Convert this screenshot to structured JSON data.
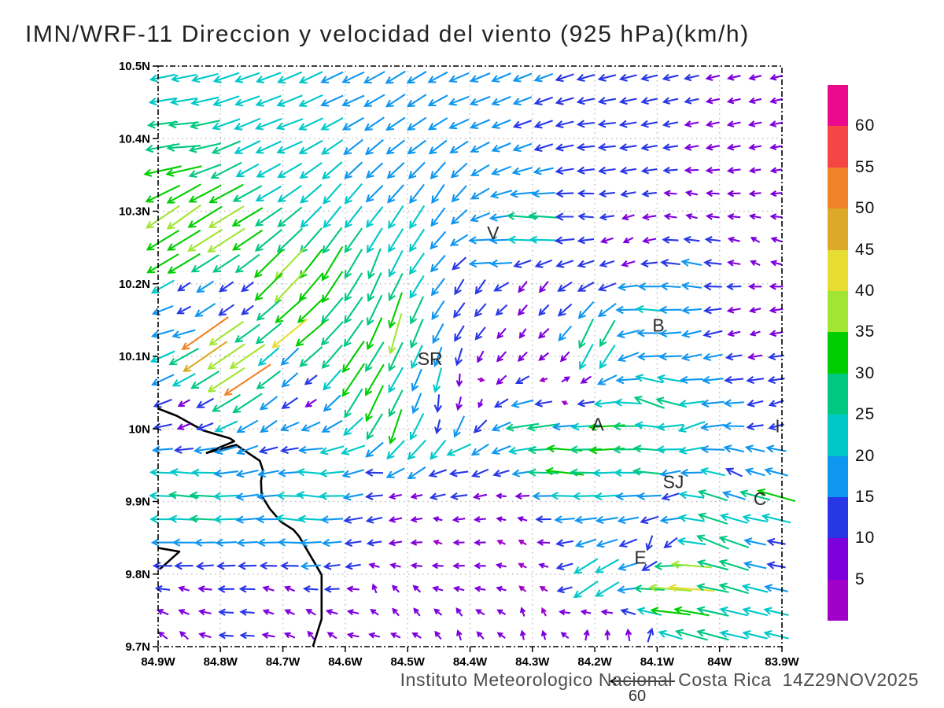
{
  "title": "IMN/WRF-11 Direccion y velocidad del viento (925 hPa)(km/h)",
  "footer": {
    "text": "Instituto Meteorologico Nacional Costa Rica  14Z29NOV2025"
  },
  "chart_data": {
    "type": "vector_field",
    "model": "IMN/WRF-11",
    "variable": "Direccion y velocidad del viento",
    "pressure_level": "925 hPa",
    "units": "km/h",
    "valid_time": "14Z29NOV2025",
    "source": "Instituto Meteorologico Nacional Costa Rica",
    "axes": {
      "lat_range": [
        9.7,
        10.5
      ],
      "lonW_range": [
        84.9,
        83.9
      ],
      "lat_ticks": [
        "10.5N",
        "10.4N",
        "10.3N",
        "10.2N",
        "10.1N",
        "10N",
        "9.9N",
        "9.8N",
        "9.7N"
      ],
      "lon_ticks": [
        "84.9W",
        "84.8W",
        "84.7W",
        "84.6W",
        "84.5W",
        "84.4W",
        "84.3W",
        "84.2W",
        "84.1W",
        "84W",
        "83.9W"
      ],
      "gridlines": "dotted"
    },
    "grid": {
      "cols": 30,
      "rows": 25
    },
    "colorbar": {
      "levels": [
        5,
        10,
        15,
        20,
        25,
        30,
        35,
        40,
        45,
        50,
        55,
        60
      ],
      "colors_low_to_high": [
        "#A000C8",
        "#7D00DC",
        "#2837E6",
        "#0F96F0",
        "#00C8C8",
        "#00C880",
        "#00CD00",
        "#A0E632",
        "#E6DC32",
        "#DCAA28",
        "#F08228",
        "#F54545",
        "#EB0A8C"
      ]
    },
    "reference_vector": {
      "value": 60,
      "label": "60"
    },
    "stations": [
      {
        "label": "V",
        "lonW": 84.363,
        "lat": 10.27
      },
      {
        "label": "SR",
        "lonW": 84.464,
        "lat": 10.097
      },
      {
        "label": "B",
        "lonW": 84.098,
        "lat": 10.143
      },
      {
        "label": "A",
        "lonW": 84.195,
        "lat": 10.006
      },
      {
        "label": "SJ",
        "lonW": 84.074,
        "lat": 9.927
      },
      {
        "label": "C",
        "lonW": 83.935,
        "lat": 9.904
      },
      {
        "label": "E",
        "lonW": 84.127,
        "lat": 9.823
      },
      {
        "label": "I",
        "lonW": 83.907,
        "lat": 10.004
      }
    ],
    "coastline": {
      "segments": [
        [
          [
            84.9,
            10.028
          ],
          [
            84.87,
            10.018
          ],
          [
            84.828,
            9.998
          ],
          [
            84.785,
            9.987
          ],
          [
            84.778,
            9.983
          ],
          [
            84.822,
            9.967
          ],
          [
            84.775,
            9.978
          ],
          [
            84.737,
            9.956
          ],
          [
            84.732,
            9.943
          ],
          [
            84.735,
            9.928
          ],
          [
            84.734,
            9.908
          ],
          [
            84.721,
            9.89
          ],
          [
            84.703,
            9.872
          ],
          [
            84.683,
            9.861
          ],
          [
            84.674,
            9.852
          ],
          [
            84.638,
            9.799
          ],
          [
            84.638,
            9.738
          ],
          [
            84.652,
            9.7
          ]
        ],
        [
          [
            84.9,
            9.836
          ],
          [
            84.866,
            9.831
          ],
          [
            84.897,
            9.807
          ]
        ]
      ]
    },
    "wind_samples": {
      "format": [
        "lonW",
        "lat",
        "u_kmh_eastward",
        "v_kmh_northward"
      ],
      "points": [
        [
          84.87,
          10.47,
          -20,
          -4
        ],
        [
          84.75,
          10.47,
          -20,
          -7
        ],
        [
          84.6,
          10.46,
          -18,
          -8
        ],
        [
          84.4,
          10.45,
          -16,
          -6
        ],
        [
          84.87,
          10.43,
          -25,
          -2
        ],
        [
          84.7,
          10.42,
          -22,
          -8
        ],
        [
          84.5,
          10.42,
          -15,
          -10
        ],
        [
          84.3,
          10.42,
          -14,
          -5
        ],
        [
          84.2,
          10.4,
          -13,
          -1
        ],
        [
          84.0,
          10.42,
          -9,
          -2
        ],
        [
          83.93,
          10.47,
          -8,
          -2
        ],
        [
          84.86,
          10.39,
          -29,
          -2
        ],
        [
          84.88,
          10.36,
          -33,
          -7
        ],
        [
          84.75,
          10.35,
          -18,
          -10
        ],
        [
          84.55,
          10.35,
          -13,
          -12
        ],
        [
          83.92,
          10.35,
          -7,
          -1
        ],
        [
          84.78,
          10.33,
          -30,
          -16
        ],
        [
          84.87,
          10.3,
          -30,
          -22
        ],
        [
          84.8,
          10.27,
          -34,
          -22
        ],
        [
          84.6,
          10.3,
          -14,
          -18
        ],
        [
          84.87,
          10.24,
          -30,
          -18
        ],
        [
          84.45,
          10.32,
          -10,
          -15
        ],
        [
          84.5,
          10.28,
          -12,
          -20
        ],
        [
          84.3,
          10.28,
          -28,
          3
        ],
        [
          84.37,
          10.24,
          -20,
          2
        ],
        [
          84.22,
          10.3,
          -11,
          1
        ],
        [
          84.05,
          10.3,
          -7,
          2
        ],
        [
          83.94,
          10.25,
          -5,
          3
        ],
        [
          84.15,
          10.26,
          -6,
          -3
        ],
        [
          84.7,
          10.21,
          -28,
          -30
        ],
        [
          84.62,
          10.22,
          -18,
          -30
        ],
        [
          84.55,
          10.22,
          -10,
          -26
        ],
        [
          84.85,
          10.18,
          -5,
          -4
        ],
        [
          84.77,
          10.18,
          -4,
          -3
        ],
        [
          84.87,
          10.14,
          -17,
          -3
        ],
        [
          84.82,
          10.12,
          -45,
          -32
        ],
        [
          84.76,
          10.07,
          -42,
          -28
        ],
        [
          84.68,
          10.13,
          -32,
          -26
        ],
        [
          84.58,
          10.08,
          -20,
          -30
        ],
        [
          84.56,
          10.04,
          -15,
          -32
        ],
        [
          84.52,
          10.14,
          -10,
          -36
        ],
        [
          84.52,
          10.0,
          -10,
          -30
        ],
        [
          84.47,
          9.99,
          -14,
          -30
        ],
        [
          84.45,
          10.05,
          -6,
          -26
        ],
        [
          84.43,
          10.0,
          -8,
          -20
        ],
        [
          84.43,
          10.08,
          -4,
          -16
        ],
        [
          84.4,
          10.2,
          -6,
          -12
        ],
        [
          84.3,
          10.19,
          -5,
          -8
        ],
        [
          84.32,
          10.13,
          -4,
          -6
        ],
        [
          84.05,
          10.22,
          -16,
          3
        ],
        [
          84.12,
          10.16,
          -22,
          2
        ],
        [
          84.03,
          10.12,
          -15,
          -4
        ],
        [
          83.95,
          10.14,
          -6,
          -2
        ],
        [
          84.2,
          10.12,
          -12,
          -28
        ],
        [
          84.25,
          10.06,
          5,
          3
        ],
        [
          84.4,
          10.06,
          6,
          3
        ],
        [
          84.45,
          10.02,
          8,
          4
        ],
        [
          84.1,
          10.04,
          -26,
          10
        ],
        [
          83.92,
          10.02,
          -10,
          -4
        ],
        [
          84.7,
          10.09,
          -11,
          -12
        ],
        [
          84.66,
          10.05,
          -6,
          -4
        ],
        [
          84.72,
          10.02,
          -12,
          -10
        ],
        [
          84.85,
          10.02,
          -6,
          -4
        ],
        [
          84.3,
          10.0,
          -30,
          -4
        ],
        [
          84.18,
          9.99,
          -32,
          -2
        ],
        [
          84.05,
          10.0,
          -22,
          -8
        ],
        [
          84.25,
          9.95,
          -34,
          4
        ],
        [
          84.1,
          9.95,
          -30,
          4
        ],
        [
          83.93,
          9.95,
          -14,
          4
        ],
        [
          84.42,
          9.97,
          -20,
          -9
        ],
        [
          84.5,
          9.96,
          -18,
          -10
        ],
        [
          84.6,
          9.965,
          -20,
          -6
        ],
        [
          84.43,
          9.93,
          -14,
          1
        ],
        [
          84.55,
          9.93,
          -13,
          1
        ],
        [
          84.87,
          9.975,
          -13,
          -2
        ],
        [
          84.7,
          9.975,
          -13,
          -2
        ],
        [
          84.87,
          9.95,
          -22,
          2
        ],
        [
          84.65,
          9.945,
          -23,
          2
        ],
        [
          84.85,
          9.92,
          -25,
          3
        ],
        [
          84.65,
          9.915,
          -24,
          3
        ],
        [
          84.84,
          9.89,
          -29,
          2
        ],
        [
          84.68,
          9.875,
          -23,
          3
        ],
        [
          84.86,
          9.845,
          -18,
          0
        ],
        [
          84.65,
          9.835,
          -17,
          -1
        ],
        [
          84.83,
          9.815,
          -13,
          -1
        ],
        [
          84.6,
          9.81,
          -11,
          -2
        ],
        [
          84.5,
          9.9,
          -6,
          0
        ],
        [
          84.35,
          9.89,
          -5,
          1
        ],
        [
          84.45,
          9.86,
          -4,
          2
        ],
        [
          84.33,
          9.855,
          -3,
          3
        ],
        [
          84.07,
          9.925,
          -10,
          -6
        ],
        [
          83.97,
          9.935,
          -12,
          6
        ],
        [
          83.92,
          9.905,
          -35,
          10
        ],
        [
          84.02,
          9.91,
          -25,
          8
        ],
        [
          83.94,
          9.88,
          -20,
          4
        ],
        [
          84.0,
          9.85,
          -28,
          12
        ],
        [
          83.92,
          9.83,
          -12,
          2
        ],
        [
          84.2,
          9.79,
          -22,
          -16
        ],
        [
          84.1,
          9.835,
          -2,
          -12
        ],
        [
          84.08,
          9.76,
          -36,
          4
        ],
        [
          84.06,
          9.79,
          -46,
          3
        ],
        [
          83.98,
          9.8,
          -25,
          8
        ],
        [
          84.3,
          9.79,
          -3,
          3
        ],
        [
          84.85,
          9.77,
          -6,
          2
        ],
        [
          84.7,
          9.765,
          -5,
          3
        ],
        [
          84.55,
          9.78,
          -2,
          5
        ],
        [
          84.87,
          9.72,
          -5,
          5
        ],
        [
          84.65,
          9.72,
          -4,
          5
        ],
        [
          84.5,
          9.76,
          -3,
          5
        ],
        [
          84.42,
          9.72,
          -2,
          6
        ],
        [
          84.3,
          9.73,
          0,
          6
        ],
        [
          84.2,
          9.72,
          2,
          7
        ],
        [
          84.12,
          9.71,
          4,
          10
        ],
        [
          84.03,
          9.72,
          -28,
          8
        ],
        [
          83.93,
          9.73,
          -20,
          5
        ]
      ]
    }
  }
}
